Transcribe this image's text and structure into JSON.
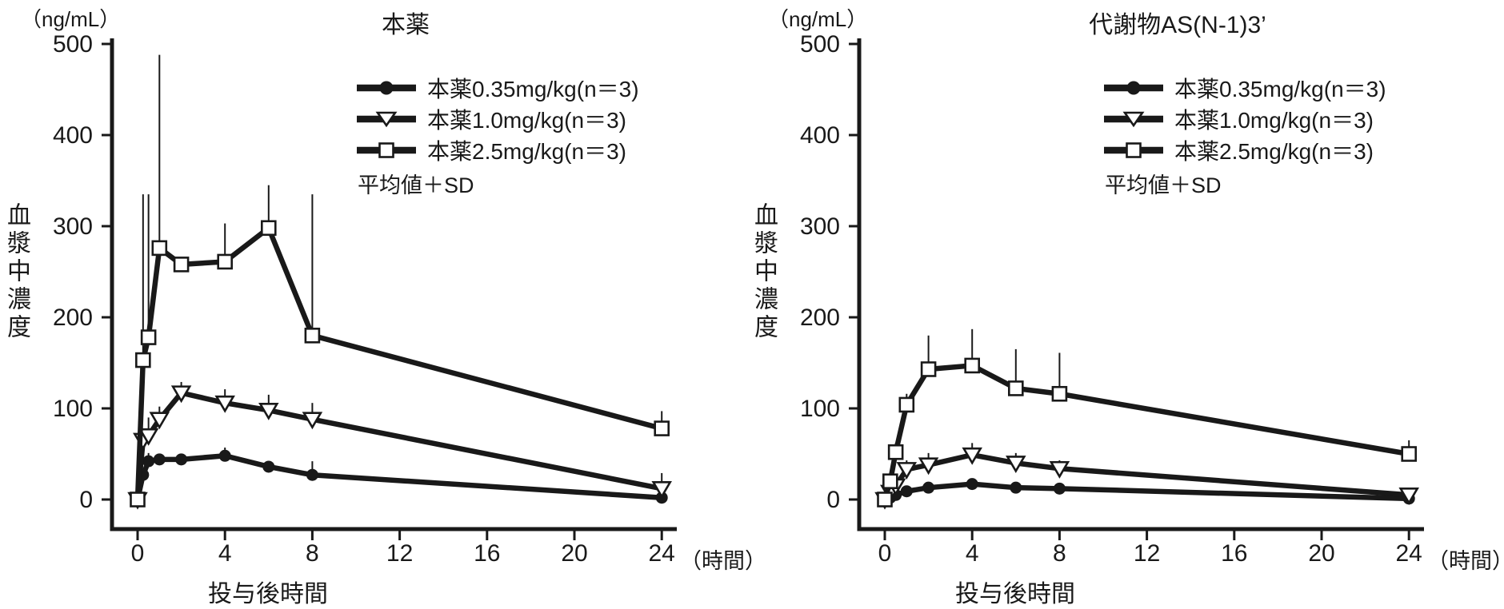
{
  "colors": {
    "ink": "#191919",
    "paper": "#ffffff"
  },
  "chart_data": [
    {
      "type": "line",
      "title": "本薬",
      "y_unit": "（ng/mL）",
      "x_unit": "（時間）",
      "ylabel": "血漿中濃度",
      "xlabel": "投与後時間",
      "legend_note": "平均値＋SD",
      "ylim": [
        0,
        500
      ],
      "yticks": [
        0,
        100,
        200,
        300,
        400,
        500
      ],
      "xticks": [
        0,
        4,
        8,
        12,
        16,
        20,
        24
      ],
      "x_hours": [
        0,
        0.25,
        0.5,
        1,
        2,
        4,
        6,
        8,
        24
      ],
      "series": [
        {
          "name": "本薬0.35mg/kg(n＝3)",
          "marker": "circle-filled",
          "values": [
            0,
            27,
            42,
            44,
            44,
            48,
            36,
            27,
            2
          ],
          "sd": [
            0,
            5,
            9,
            6,
            6,
            9,
            6,
            15,
            4
          ]
        },
        {
          "name": "本薬1.0mg/kg(n＝3)",
          "marker": "triangle-open",
          "values": [
            0,
            65,
            70,
            88,
            117,
            106,
            98,
            88,
            12
          ],
          "sd": [
            0,
            12,
            20,
            14,
            12,
            15,
            17,
            18,
            17
          ]
        },
        {
          "name": "本薬2.5mg/kg(n＝3)",
          "marker": "square-open",
          "values": [
            0,
            153,
            178,
            276,
            258,
            261,
            298,
            180,
            78
          ],
          "sd": [
            0,
            182,
            157,
            212,
            0,
            42,
            47,
            155,
            19
          ]
        }
      ]
    },
    {
      "type": "line",
      "title": "代謝物AS(N-1)3’",
      "y_unit": "（ng/mL）",
      "x_unit": "（時間）",
      "ylabel": "血漿中濃度",
      "xlabel": "投与後時間",
      "legend_note": "平均値＋SD",
      "ylim": [
        0,
        500
      ],
      "yticks": [
        0,
        100,
        200,
        300,
        400,
        500
      ],
      "xticks": [
        0,
        4,
        8,
        12,
        16,
        20,
        24
      ],
      "x_hours": [
        0,
        0.25,
        0.5,
        1,
        2,
        4,
        6,
        8,
        24
      ],
      "series": [
        {
          "name": "本薬0.35mg/kg(n＝3)",
          "marker": "circle-filled",
          "values": [
            0,
            2,
            5,
            9,
            13,
            17,
            13,
            12,
            1
          ],
          "sd": [
            0,
            1,
            2,
            4,
            4,
            6,
            4,
            4,
            2
          ]
        },
        {
          "name": "本薬1.0mg/kg(n＝3)",
          "marker": "triangle-open",
          "values": [
            0,
            8,
            15,
            33,
            38,
            49,
            40,
            34,
            5
          ],
          "sd": [
            0,
            3,
            6,
            10,
            13,
            13,
            11,
            9,
            8
          ]
        },
        {
          "name": "本薬2.5mg/kg(n＝3)",
          "marker": "square-open",
          "values": [
            0,
            20,
            52,
            104,
            143,
            147,
            122,
            116,
            50
          ],
          "sd": [
            0,
            8,
            10,
            12,
            37,
            40,
            43,
            45,
            15
          ]
        }
      ]
    }
  ]
}
